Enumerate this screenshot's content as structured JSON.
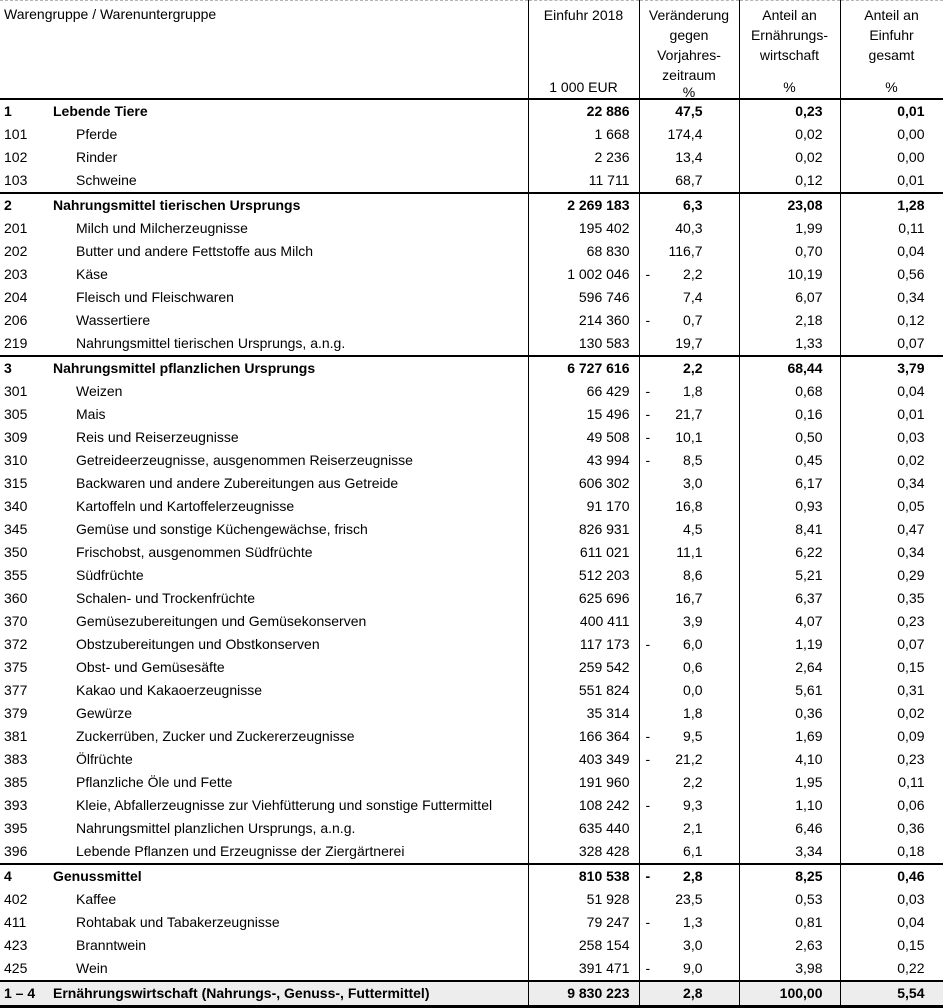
{
  "colors": {
    "border": "#000000",
    "total_row_bg": "#ededed",
    "page_top_rule": "#b4b4b4"
  },
  "table": {
    "header": {
      "name_col": "Warengruppe / Warenuntergruppe",
      "einfuhr_title": "Einfuhr 2018",
      "einfuhr_unit": "1 000 EUR",
      "change_lines": [
        "Veränderung",
        "gegen",
        "Vorjahres-",
        "zeitraum"
      ],
      "change_unit": "%",
      "share_food_lines": [
        "Anteil an",
        "Ernährungs-",
        "wirtschaft"
      ],
      "share_food_unit": "%",
      "share_total_lines": [
        "Anteil an",
        "Einfuhr",
        "gesamt"
      ],
      "share_total_unit": "%"
    },
    "rows": [
      {
        "code": "1",
        "label": "Lebende Tiere",
        "level": "group",
        "einfuhr": "22 886",
        "minus": "",
        "change": "47,5",
        "share_food": "0,23",
        "share_total": "0,01"
      },
      {
        "code": "101",
        "label": "Pferde",
        "level": "item",
        "einfuhr": "1 668",
        "minus": "",
        "change": "174,4",
        "share_food": "0,02",
        "share_total": "0,00"
      },
      {
        "code": "102",
        "label": "Rinder",
        "level": "item",
        "einfuhr": "2 236",
        "minus": "",
        "change": "13,4",
        "share_food": "0,02",
        "share_total": "0,00"
      },
      {
        "code": "103",
        "label": "Schweine",
        "level": "item",
        "einfuhr": "11 711",
        "minus": "",
        "change": "68,7",
        "share_food": "0,12",
        "share_total": "0,01"
      },
      {
        "code": "2",
        "label": "Nahrungsmittel tierischen Ursprungs",
        "level": "group",
        "einfuhr": "2 269 183",
        "minus": "",
        "change": "6,3",
        "share_food": "23,08",
        "share_total": "1,28"
      },
      {
        "code": "201",
        "label": "Milch und Milcherzeugnisse",
        "level": "item",
        "einfuhr": "195 402",
        "minus": "",
        "change": "40,3",
        "share_food": "1,99",
        "share_total": "0,11"
      },
      {
        "code": "202",
        "label": "Butter und andere Fettstoffe aus Milch",
        "level": "item",
        "einfuhr": "68 830",
        "minus": "",
        "change": "116,7",
        "share_food": "0,70",
        "share_total": "0,04"
      },
      {
        "code": "203",
        "label": "Käse",
        "level": "item",
        "einfuhr": "1 002 046",
        "minus": "-",
        "change": "2,2",
        "share_food": "10,19",
        "share_total": "0,56"
      },
      {
        "code": "204",
        "label": "Fleisch und Fleischwaren",
        "level": "item",
        "einfuhr": "596 746",
        "minus": "",
        "change": "7,4",
        "share_food": "6,07",
        "share_total": "0,34"
      },
      {
        "code": "206",
        "label": "Wassertiere",
        "level": "item",
        "einfuhr": "214 360",
        "minus": "-",
        "change": "0,7",
        "share_food": "2,18",
        "share_total": "0,12"
      },
      {
        "code": "219",
        "label": "Nahrungsmittel tierischen Ursprungs, a.n.g.",
        "level": "item",
        "einfuhr": "130 583",
        "minus": "",
        "change": "19,7",
        "share_food": "1,33",
        "share_total": "0,07"
      },
      {
        "code": "3",
        "label": "Nahrungsmittel pflanzlichen Ursprungs",
        "level": "group",
        "einfuhr": "6 727 616",
        "minus": "",
        "change": "2,2",
        "share_food": "68,44",
        "share_total": "3,79"
      },
      {
        "code": "301",
        "label": "Weizen",
        "level": "item",
        "einfuhr": "66 429",
        "minus": "-",
        "change": "1,8",
        "share_food": "0,68",
        "share_total": "0,04"
      },
      {
        "code": "305",
        "label": "Mais",
        "level": "item",
        "einfuhr": "15 496",
        "minus": "-",
        "change": "21,7",
        "share_food": "0,16",
        "share_total": "0,01"
      },
      {
        "code": "309",
        "label": "Reis und Reiserzeugnisse",
        "level": "item",
        "einfuhr": "49 508",
        "minus": "-",
        "change": "10,1",
        "share_food": "0,50",
        "share_total": "0,03"
      },
      {
        "code": "310",
        "label": "Getreideerzeugnisse, ausgenommen Reiserzeugnisse",
        "level": "item",
        "einfuhr": "43 994",
        "minus": "-",
        "change": "8,5",
        "share_food": "0,45",
        "share_total": "0,02"
      },
      {
        "code": "315",
        "label": "Backwaren und andere Zubereitungen aus Getreide",
        "level": "item",
        "einfuhr": "606 302",
        "minus": "",
        "change": "3,0",
        "share_food": "6,17",
        "share_total": "0,34"
      },
      {
        "code": "340",
        "label": "Kartoffeln und Kartoffelerzeugnisse",
        "level": "item",
        "einfuhr": "91 170",
        "minus": "",
        "change": "16,8",
        "share_food": "0,93",
        "share_total": "0,05"
      },
      {
        "code": "345",
        "label": "Gemüse und sonstige Küchengewächse, frisch",
        "level": "item",
        "einfuhr": "826 931",
        "minus": "",
        "change": "4,5",
        "share_food": "8,41",
        "share_total": "0,47"
      },
      {
        "code": "350",
        "label": "Frischobst, ausgenommen Südfrüchte",
        "level": "item",
        "einfuhr": "611 021",
        "minus": "",
        "change": "11,1",
        "share_food": "6,22",
        "share_total": "0,34"
      },
      {
        "code": "355",
        "label": "Südfrüchte",
        "level": "item",
        "einfuhr": "512 203",
        "minus": "",
        "change": "8,6",
        "share_food": "5,21",
        "share_total": "0,29"
      },
      {
        "code": "360",
        "label": "Schalen- und Trockenfrüchte",
        "level": "item",
        "einfuhr": "625 696",
        "minus": "",
        "change": "16,7",
        "share_food": "6,37",
        "share_total": "0,35"
      },
      {
        "code": "370",
        "label": "Gemüsezubereitungen und Gemüsekonserven",
        "level": "item",
        "einfuhr": "400 411",
        "minus": "",
        "change": "3,9",
        "share_food": "4,07",
        "share_total": "0,23"
      },
      {
        "code": "372",
        "label": "Obstzubereitungen und Obstkonserven",
        "level": "item",
        "einfuhr": "117 173",
        "minus": "-",
        "change": "6,0",
        "share_food": "1,19",
        "share_total": "0,07"
      },
      {
        "code": "375",
        "label": "Obst- und Gemüsesäfte",
        "level": "item",
        "einfuhr": "259 542",
        "minus": "",
        "change": "0,6",
        "share_food": "2,64",
        "share_total": "0,15"
      },
      {
        "code": "377",
        "label": "Kakao und Kakaoerzeugnisse",
        "level": "item",
        "einfuhr": "551 824",
        "minus": "",
        "change": "0,0",
        "share_food": "5,61",
        "share_total": "0,31"
      },
      {
        "code": "379",
        "label": "Gewürze",
        "level": "item",
        "einfuhr": "35 314",
        "minus": "",
        "change": "1,8",
        "share_food": "0,36",
        "share_total": "0,02"
      },
      {
        "code": "381",
        "label": "Zuckerrüben, Zucker und Zuckererzeugnisse",
        "level": "item",
        "einfuhr": "166 364",
        "minus": "-",
        "change": "9,5",
        "share_food": "1,69",
        "share_total": "0,09"
      },
      {
        "code": "383",
        "label": "Ölfrüchte",
        "level": "item",
        "einfuhr": "403 349",
        "minus": "-",
        "change": "21,2",
        "share_food": "4,10",
        "share_total": "0,23"
      },
      {
        "code": "385",
        "label": "Pflanzliche Öle und Fette",
        "level": "item",
        "einfuhr": "191 960",
        "minus": "",
        "change": "2,2",
        "share_food": "1,95",
        "share_total": "0,11"
      },
      {
        "code": "393",
        "label": "Kleie, Abfallerzeugnisse zur Viehfütterung und sonstige Futtermittel",
        "level": "item",
        "einfuhr": "108 242",
        "minus": "-",
        "change": "9,3",
        "share_food": "1,10",
        "share_total": "0,06"
      },
      {
        "code": "395",
        "label": "Nahrungsmittel planzlichen Ursprungs, a.n.g.",
        "level": "item",
        "einfuhr": "635 440",
        "minus": "",
        "change": "2,1",
        "share_food": "6,46",
        "share_total": "0,36"
      },
      {
        "code": "396",
        "label": "Lebende Pflanzen und Erzeugnisse der Ziergärtnerei",
        "level": "item",
        "einfuhr": "328 428",
        "minus": "",
        "change": "6,1",
        "share_food": "3,34",
        "share_total": "0,18"
      },
      {
        "code": "4",
        "label": "Genussmittel",
        "level": "group",
        "einfuhr": "810 538",
        "minus": "-",
        "change": "2,8",
        "share_food": "8,25",
        "share_total": "0,46"
      },
      {
        "code": "402",
        "label": "Kaffee",
        "level": "item",
        "einfuhr": "51 928",
        "minus": "",
        "change": "23,5",
        "share_food": "0,53",
        "share_total": "0,03"
      },
      {
        "code": "411",
        "label": "Rohtabak und Tabakerzeugnisse",
        "level": "item",
        "einfuhr": "79 247",
        "minus": "-",
        "change": "1,3",
        "share_food": "0,81",
        "share_total": "0,04"
      },
      {
        "code": "423",
        "label": "Branntwein",
        "level": "item",
        "einfuhr": "258 154",
        "minus": "",
        "change": "3,0",
        "share_food": "2,63",
        "share_total": "0,15"
      },
      {
        "code": "425",
        "label": "Wein",
        "level": "item",
        "einfuhr": "391 471",
        "minus": "-",
        "change": "9,0",
        "share_food": "3,98",
        "share_total": "0,22"
      },
      {
        "code": "1 – 4",
        "label": "Ernährungswirtschaft (Nahrungs-, Genuss-, Futtermittel)",
        "level": "total",
        "einfuhr": "9 830 223",
        "minus": "",
        "change": "2,8",
        "share_food": "100,00",
        "share_total": "5,54"
      }
    ]
  }
}
